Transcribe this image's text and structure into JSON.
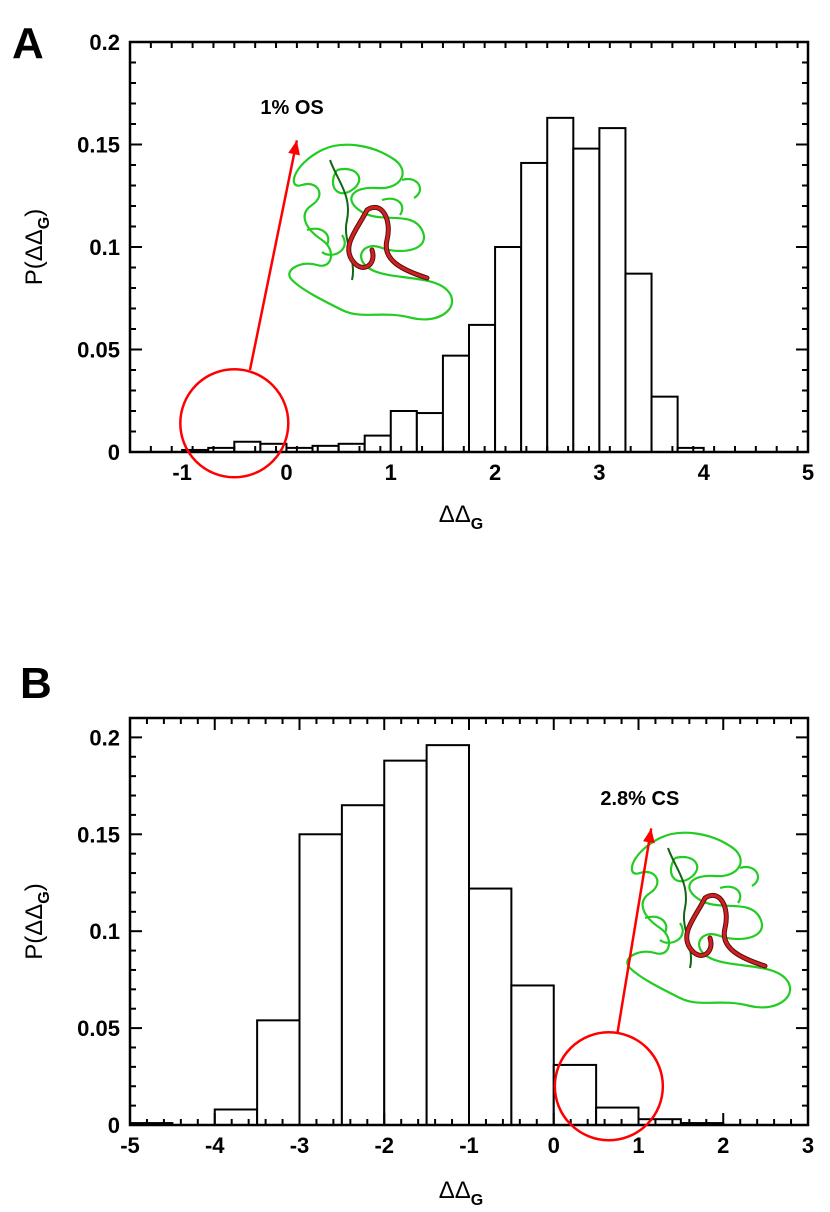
{
  "chart_data": [
    {
      "panel": "A",
      "type": "bar",
      "title": "",
      "xlabel": "ΔΔ_G",
      "xlabel_main": "ΔΔ",
      "xlabel_sub": "G",
      "ylabel": "P(ΔΔ_G)",
      "ylabel_main": "P(ΔΔ",
      "ylabel_sub": "G",
      "ylabel_close": ")",
      "xlim": [
        -1.5,
        5
      ],
      "ylim": [
        0,
        0.2
      ],
      "xticks": [
        -1,
        0,
        1,
        2,
        3,
        4,
        5
      ],
      "xtick_labels": [
        "-1",
        "0",
        "1",
        "2",
        "3",
        "4",
        "5"
      ],
      "yticks": [
        0,
        0.05,
        0.1,
        0.15,
        0.2
      ],
      "ytick_labels": [
        "0",
        "0.05",
        "0.1",
        "0.15",
        "0.2"
      ],
      "bin_width": 0.25,
      "bin_left_edges": [
        -1,
        -0.75,
        -0.5,
        -0.25,
        0,
        0.25,
        0.5,
        0.75,
        1,
        1.25,
        1.5,
        1.75,
        2,
        2.25,
        2.5,
        2.75,
        3,
        3.25,
        3.5,
        3.75,
        4
      ],
      "values": [
        0.001,
        0.002,
        0.005,
        0.004,
        0.002,
        0.003,
        0.004,
        0.008,
        0.02,
        0.019,
        0.047,
        0.062,
        0.1,
        0.141,
        0.163,
        0.148,
        0.158,
        0.087,
        0.027,
        0.002,
        0.0
      ],
      "annotation": {
        "text": "1% OS",
        "circle_center": [
          -0.5,
          0.014
        ],
        "arrow_from": [
          -0.35,
          0.04
        ],
        "arrow_to": [
          0.1,
          0.152
        ],
        "text_anchor": [
          -0.25,
          0.165
        ]
      },
      "inset": "protein-structure-open-state"
    },
    {
      "panel": "B",
      "type": "bar",
      "title": "",
      "xlabel": "ΔΔ_G",
      "xlabel_main": "ΔΔ",
      "xlabel_sub": "G",
      "ylabel": "P(ΔΔ_G)",
      "ylabel_main": "P(ΔΔ",
      "ylabel_sub": "G",
      "ylabel_close": ")",
      "xlim": [
        -5,
        3
      ],
      "ylim": [
        0,
        0.21
      ],
      "xticks": [
        -5,
        -4,
        -3,
        -2,
        -1,
        0,
        1,
        2,
        3
      ],
      "xtick_labels": [
        "-5",
        "-4",
        "-3",
        "-2",
        "-1",
        "0",
        "1",
        "2",
        "3"
      ],
      "yticks": [
        0,
        0.05,
        0.1,
        0.15,
        0.2
      ],
      "ytick_labels": [
        "0",
        "0.05",
        "0.1",
        "0.15",
        "0.2"
      ],
      "bin_width": 0.5,
      "bin_left_edges": [
        -5,
        -4.5,
        -4,
        -3.5,
        -3,
        -2.5,
        -2,
        -1.5,
        -1,
        -0.5,
        0,
        0.5,
        1,
        1.5
      ],
      "values": [
        0.001,
        0.0,
        0.008,
        0.054,
        0.15,
        0.165,
        0.188,
        0.196,
        0.122,
        0.072,
        0.031,
        0.009,
        0.003,
        0.001
      ],
      "annotation": {
        "text": "2.8% CS",
        "circle_center": [
          0.65,
          0.02
        ],
        "arrow_from": [
          0.75,
          0.047
        ],
        "arrow_to": [
          1.15,
          0.153
        ],
        "text_anchor": [
          0.55,
          0.165
        ]
      },
      "inset": "protein-structure-closed-state"
    }
  ],
  "colors": {
    "bar_fill": "#ffffff",
    "bar_stroke": "#000000",
    "annotation": "#ff0000",
    "protein_main": "#22cc22",
    "protein_dark": "#116611",
    "protein_highlight": "#d02020"
  }
}
